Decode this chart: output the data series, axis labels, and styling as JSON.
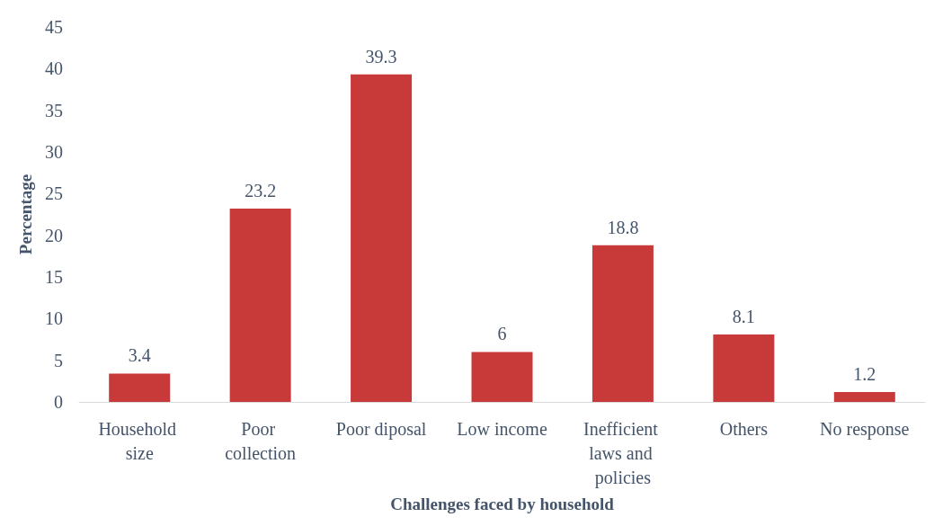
{
  "chart_data": {
    "type": "bar",
    "xlabel": "Challenges faced by household",
    "ylabel": "Percentage",
    "categories": [
      "Household size",
      "Poor collection",
      "Poor diposal",
      "Low income",
      "Inefficient laws and policies",
      "Others",
      "No response"
    ],
    "values": [
      3.4,
      23.2,
      39.3,
      6,
      18.8,
      8.1,
      1.2
    ],
    "color": "#c8393a",
    "ylim": [
      0,
      45
    ],
    "yticks": [
      0,
      5,
      10,
      15,
      20,
      25,
      30,
      35,
      40,
      45
    ],
    "data_labels": true
  }
}
